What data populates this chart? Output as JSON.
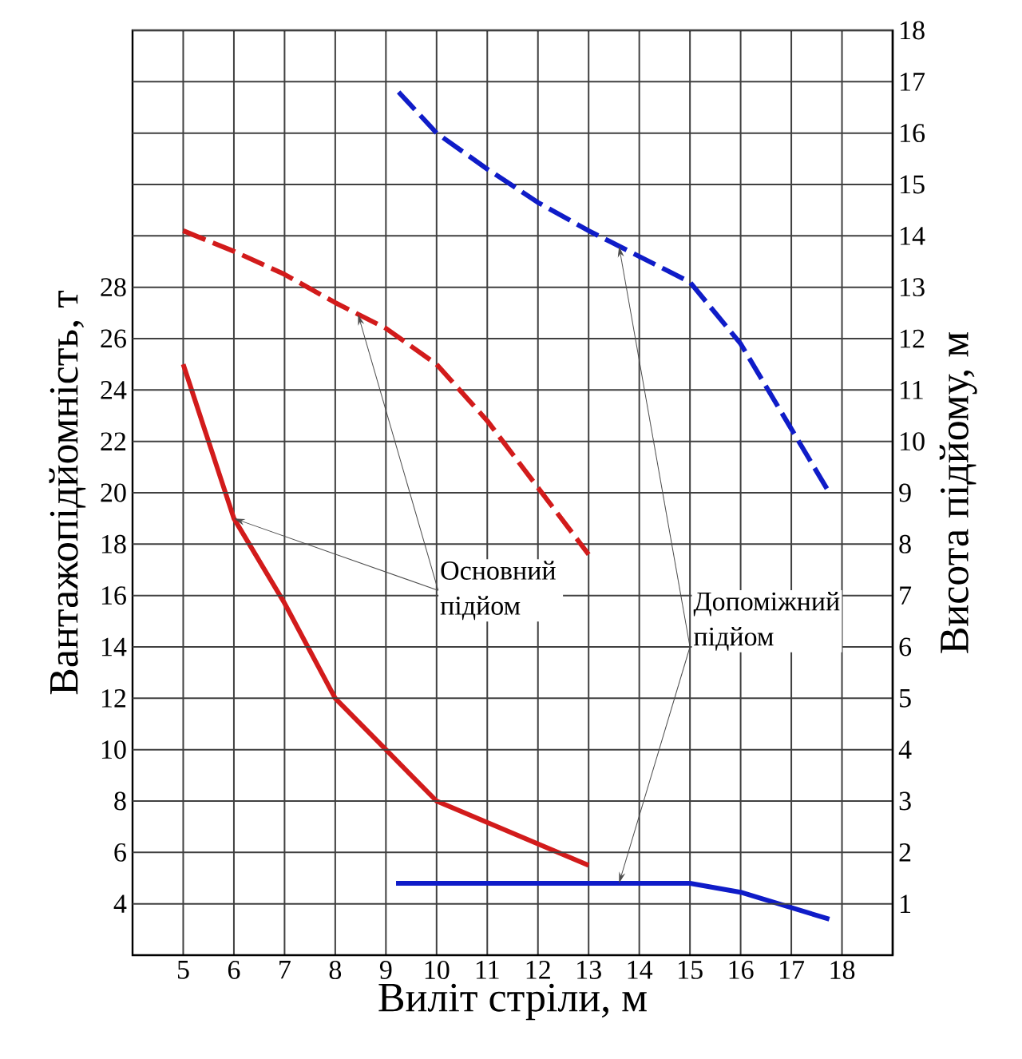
{
  "chart_data": {
    "type": "line",
    "xlabel": "Виліт стріли, м",
    "ylabel": "Вантажопідйомність, т",
    "y2label": "Висота підйому, м",
    "xlim": [
      4,
      19
    ],
    "xticks": [
      5,
      6,
      7,
      8,
      9,
      10,
      11,
      12,
      13,
      14,
      15,
      16,
      17,
      18
    ],
    "ylim": [
      2,
      38
    ],
    "yticks": [
      4,
      6,
      8,
      10,
      12,
      14,
      16,
      18,
      20,
      22,
      24,
      26,
      28
    ],
    "y2lim": [
      0,
      18
    ],
    "y2ticks": [
      1,
      2,
      3,
      4,
      5,
      6,
      7,
      8,
      9,
      10,
      11,
      12,
      13,
      14,
      15,
      16,
      17,
      18
    ],
    "grid": true,
    "marker": "none",
    "series": [
      {
        "color": "#d21b1b",
        "line_style": "solid",
        "x": [
          5,
          6,
          7,
          8,
          9,
          10,
          13
        ],
        "values": [
          25,
          19,
          15.7,
          12,
          10,
          8,
          5.5
        ]
      },
      {
        "color": "#d21b1b",
        "line_style": "dashed",
        "axis": "y2",
        "x": [
          5,
          6,
          7,
          8,
          9,
          10,
          11,
          12,
          13
        ],
        "values": [
          14.1,
          13.7,
          13.25,
          12.7,
          12.2,
          11.5,
          10.4,
          9.1,
          7.8
        ]
      },
      {
        "color": "#0f1cc8",
        "line_style": "dashed",
        "axis": "y2",
        "x": [
          9.25,
          10,
          11,
          12,
          13,
          14,
          15,
          16,
          17.75
        ],
        "values": [
          16.8,
          16.0,
          15.3,
          14.65,
          14.1,
          13.6,
          13.1,
          11.9,
          9.0
        ]
      },
      {
        "color": "#0f1cc8",
        "line_style": "solid",
        "x": [
          9.2,
          15,
          16,
          17.75
        ],
        "values": [
          4.8,
          4.8,
          4.45,
          3.4
        ]
      }
    ],
    "annotations": [
      {
        "text": "Основний підйом",
        "x": 6,
        "y": 19
      },
      {
        "text": "Допоміжний підйом",
        "x": 13.6,
        "y": 4.8
      }
    ]
  }
}
